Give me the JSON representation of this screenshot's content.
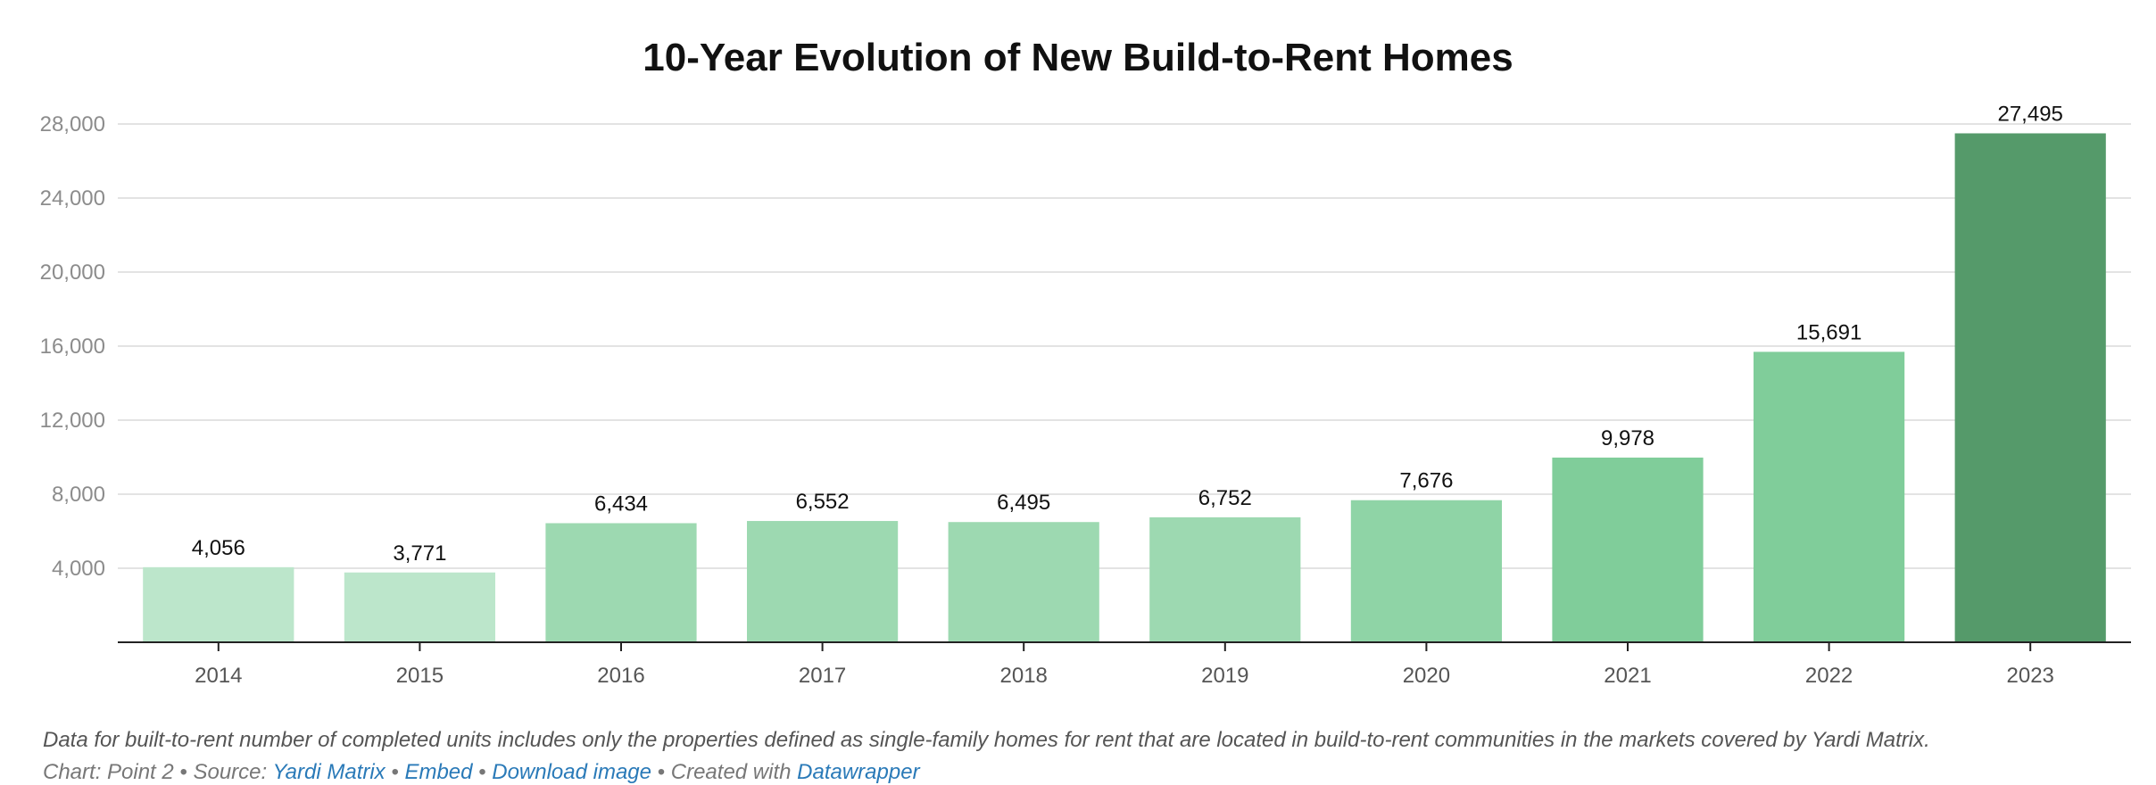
{
  "chart_data": {
    "type": "bar",
    "title": "10-Year Evolution of New Build-to-Rent Homes",
    "categories": [
      "2014",
      "2015",
      "2016",
      "2017",
      "2018",
      "2019",
      "2020",
      "2021",
      "2022",
      "2023"
    ],
    "values": [
      4056,
      3771,
      6434,
      6552,
      6495,
      6752,
      7676,
      9978,
      15691,
      27495
    ],
    "data_labels": [
      "4,056",
      "3,771",
      "6,434",
      "6,552",
      "6,495",
      "6,752",
      "7,676",
      "9,978",
      "15,691",
      "27,495"
    ],
    "bar_colors": [
      "#bce6cb",
      "#bce6cb",
      "#9dd9b1",
      "#9dd9b1",
      "#9dd9b1",
      "#9dd9b1",
      "#8fd4a6",
      "#80cd9a",
      "#80cd9a",
      "#559a6a"
    ],
    "y_ticks": [
      4000,
      8000,
      12000,
      16000,
      20000,
      24000,
      28000
    ],
    "y_tick_labels": [
      "4,000",
      "8,000",
      "12,000",
      "16,000",
      "20,000",
      "24,000",
      "28,000"
    ],
    "ylim": [
      0,
      28000
    ],
    "grid": true,
    "xlabel": "",
    "ylabel": ""
  },
  "footnote": "Data for built-to-rent number of completed units includes only the properties defined as single-family homes for rent that are located in build-to-rent communities in the markets covered by Yardi Matrix.",
  "credits": {
    "prefix": "Chart: Point 2 • Source: ",
    "source_link": "Yardi Matrix",
    "separator1": " • ",
    "embed_link": "Embed",
    "separator2": " • ",
    "download_link": "Download image",
    "separator3": " • Created with ",
    "datawrapper_link": "Datawrapper"
  }
}
